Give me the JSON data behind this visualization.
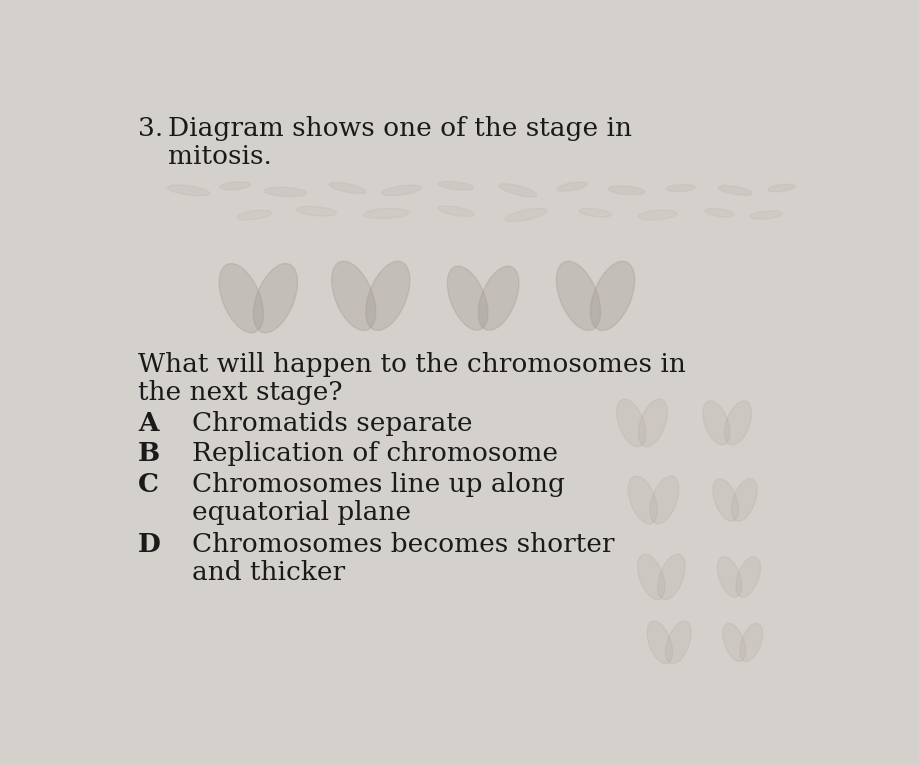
{
  "background_color": "#d4d0cc",
  "text_color": "#1a1a1a",
  "question_number": "3.",
  "question_line1": "Diagram shows one of the stage in",
  "question_line2": "mitosis.",
  "sub_q1": "What will happen to the chromosomes in",
  "sub_q2": "the next stage?",
  "options": [
    {
      "label": "A",
      "text": "Chromatids separate"
    },
    {
      "label": "B",
      "text": "Replication of chromosome"
    },
    {
      "label": "C",
      "text": "Chromosomes line up along"
    },
    {
      "label": "",
      "text": "equatorial plane"
    },
    {
      "label": "D",
      "text": "Chromosomes becomes shorter"
    },
    {
      "label": "",
      "text": "and thicker"
    }
  ],
  "font_size_q": 19,
  "font_size_opt": 19,
  "chrom_color_top": "#b8b0a4",
  "chrom_color_main": "#a09890",
  "chrom_color_lower": "#b0a89e"
}
